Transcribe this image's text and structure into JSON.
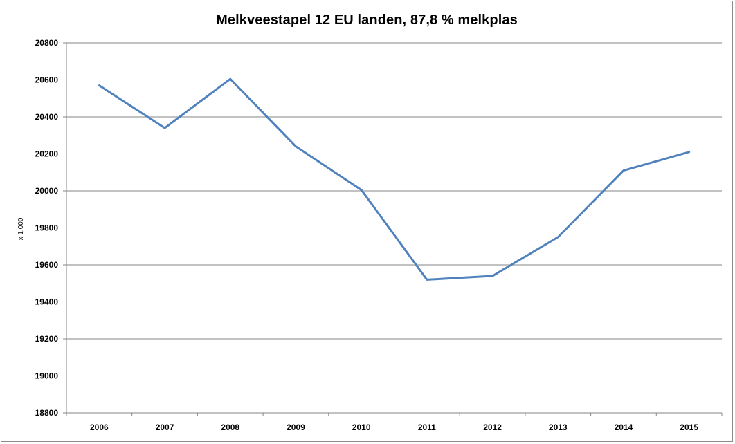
{
  "chart_data": {
    "type": "line",
    "title": "Melkveestapel 12 EU landen, 87,8 % melkplas",
    "xlabel": "",
    "ylabel": "x 1.000",
    "categories": [
      "2006",
      "2007",
      "2008",
      "2009",
      "2010",
      "2011",
      "2012",
      "2013",
      "2014",
      "2015"
    ],
    "series": [
      {
        "values": [
          20570,
          20340,
          20605,
          20240,
          20005,
          19520,
          19540,
          19750,
          20110,
          20210
        ]
      }
    ],
    "ylim": [
      18800,
      20800
    ],
    "yticks": [
      18800,
      19000,
      19200,
      19400,
      19600,
      19800,
      20000,
      20200,
      20400,
      20600,
      20800
    ],
    "grid": true,
    "legend": "none",
    "colors": {
      "line": "#4f81bd",
      "grid": "#868686",
      "axis": "#868686"
    }
  }
}
